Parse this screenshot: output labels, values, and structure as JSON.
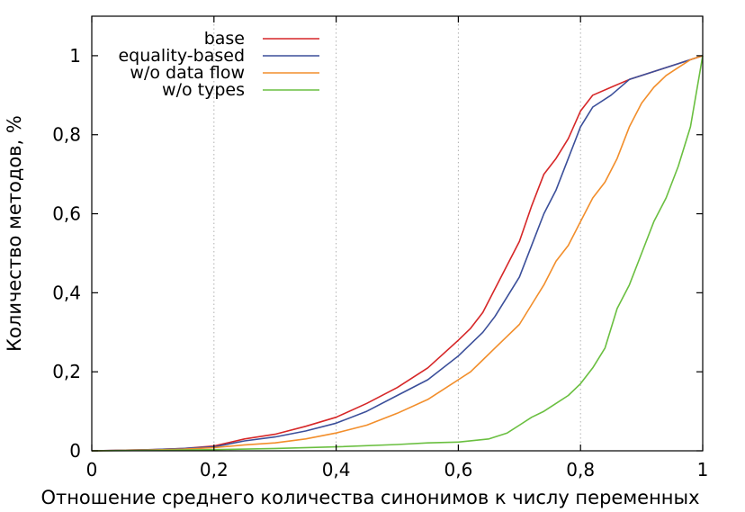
{
  "chart_data": {
    "type": "line",
    "xlabel": "Отношение среднего количества синонимов к числу переменных",
    "ylabel": "Количество методов, %",
    "xlim": [
      0,
      1
    ],
    "ylim": [
      0,
      1.1
    ],
    "grid": {
      "vertical": true,
      "horizontal": false
    },
    "legend": "top-center",
    "x_ticks": [
      "0",
      "0,2",
      "0,4",
      "0,6",
      "0,8",
      "1"
    ],
    "y_ticks": [
      "0",
      "0,2",
      "0,4",
      "0,6",
      "0,8",
      "1"
    ],
    "series": [
      {
        "name": "base",
        "color": "#d62728",
        "points": [
          [
            0,
            0
          ],
          [
            0.1,
            0.003
          ],
          [
            0.15,
            0.006
          ],
          [
            0.2,
            0.012
          ],
          [
            0.25,
            0.03
          ],
          [
            0.3,
            0.042
          ],
          [
            0.35,
            0.062
          ],
          [
            0.4,
            0.085
          ],
          [
            0.45,
            0.12
          ],
          [
            0.5,
            0.16
          ],
          [
            0.55,
            0.21
          ],
          [
            0.6,
            0.28
          ],
          [
            0.62,
            0.31
          ],
          [
            0.64,
            0.35
          ],
          [
            0.66,
            0.41
          ],
          [
            0.68,
            0.47
          ],
          [
            0.7,
            0.53
          ],
          [
            0.72,
            0.62
          ],
          [
            0.74,
            0.7
          ],
          [
            0.76,
            0.74
          ],
          [
            0.78,
            0.79
          ],
          [
            0.8,
            0.86
          ],
          [
            0.82,
            0.9
          ],
          [
            0.85,
            0.92
          ],
          [
            0.88,
            0.94
          ],
          [
            0.92,
            0.96
          ],
          [
            0.96,
            0.98
          ],
          [
            1,
            1
          ]
        ]
      },
      {
        "name": "equality-based",
        "color": "#3b4f9a",
        "points": [
          [
            0,
            0
          ],
          [
            0.1,
            0.003
          ],
          [
            0.15,
            0.006
          ],
          [
            0.2,
            0.01
          ],
          [
            0.25,
            0.025
          ],
          [
            0.3,
            0.035
          ],
          [
            0.35,
            0.05
          ],
          [
            0.4,
            0.07
          ],
          [
            0.45,
            0.1
          ],
          [
            0.5,
            0.14
          ],
          [
            0.55,
            0.18
          ],
          [
            0.6,
            0.24
          ],
          [
            0.62,
            0.27
          ],
          [
            0.64,
            0.3
          ],
          [
            0.66,
            0.34
          ],
          [
            0.68,
            0.39
          ],
          [
            0.7,
            0.44
          ],
          [
            0.72,
            0.52
          ],
          [
            0.74,
            0.6
          ],
          [
            0.76,
            0.66
          ],
          [
            0.78,
            0.74
          ],
          [
            0.8,
            0.82
          ],
          [
            0.82,
            0.87
          ],
          [
            0.85,
            0.9
          ],
          [
            0.88,
            0.94
          ],
          [
            0.92,
            0.96
          ],
          [
            0.96,
            0.98
          ],
          [
            1,
            1
          ]
        ]
      },
      {
        "name": "w/o data flow",
        "color": "#f28e2b",
        "points": [
          [
            0,
            0
          ],
          [
            0.1,
            0.002
          ],
          [
            0.15,
            0.004
          ],
          [
            0.2,
            0.008
          ],
          [
            0.25,
            0.015
          ],
          [
            0.3,
            0.02
          ],
          [
            0.35,
            0.03
          ],
          [
            0.4,
            0.045
          ],
          [
            0.45,
            0.065
          ],
          [
            0.5,
            0.095
          ],
          [
            0.55,
            0.13
          ],
          [
            0.6,
            0.18
          ],
          [
            0.62,
            0.2
          ],
          [
            0.64,
            0.23
          ],
          [
            0.66,
            0.26
          ],
          [
            0.68,
            0.29
          ],
          [
            0.7,
            0.32
          ],
          [
            0.72,
            0.37
          ],
          [
            0.74,
            0.42
          ],
          [
            0.76,
            0.48
          ],
          [
            0.78,
            0.52
          ],
          [
            0.8,
            0.58
          ],
          [
            0.82,
            0.64
          ],
          [
            0.84,
            0.68
          ],
          [
            0.86,
            0.74
          ],
          [
            0.88,
            0.82
          ],
          [
            0.9,
            0.88
          ],
          [
            0.92,
            0.92
          ],
          [
            0.94,
            0.95
          ],
          [
            0.96,
            0.97
          ],
          [
            0.98,
            0.99
          ],
          [
            1,
            1
          ]
        ]
      },
      {
        "name": "w/o types",
        "color": "#6abf40",
        "points": [
          [
            0,
            0
          ],
          [
            0.1,
            0.001
          ],
          [
            0.2,
            0.003
          ],
          [
            0.3,
            0.006
          ],
          [
            0.4,
            0.01
          ],
          [
            0.5,
            0.016
          ],
          [
            0.55,
            0.02
          ],
          [
            0.6,
            0.022
          ],
          [
            0.65,
            0.03
          ],
          [
            0.68,
            0.045
          ],
          [
            0.7,
            0.065
          ],
          [
            0.72,
            0.085
          ],
          [
            0.74,
            0.1
          ],
          [
            0.76,
            0.12
          ],
          [
            0.78,
            0.14
          ],
          [
            0.8,
            0.17
          ],
          [
            0.82,
            0.21
          ],
          [
            0.84,
            0.26
          ],
          [
            0.86,
            0.36
          ],
          [
            0.88,
            0.42
          ],
          [
            0.9,
            0.5
          ],
          [
            0.92,
            0.58
          ],
          [
            0.94,
            0.64
          ],
          [
            0.96,
            0.72
          ],
          [
            0.98,
            0.82
          ],
          [
            1,
            1
          ]
        ]
      }
    ]
  }
}
